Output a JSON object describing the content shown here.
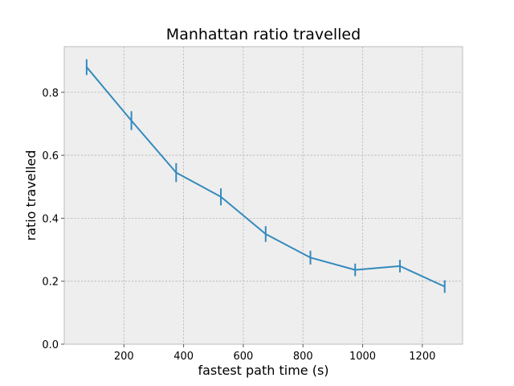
{
  "chart_data": {
    "type": "line",
    "title": "Manhattan ratio travelled",
    "xlabel": "fastest path time (s)",
    "ylabel": "ratio travelled",
    "xlim": [
      0,
      1335
    ],
    "ylim": [
      0.0,
      0.945
    ],
    "xticks": [
      200,
      400,
      600,
      800,
      1000,
      1200
    ],
    "xtick_labels": [
      "200",
      "400",
      "600",
      "800",
      "1000",
      "1200"
    ],
    "yticks": [
      0.0,
      0.2,
      0.4,
      0.6,
      0.8
    ],
    "ytick_labels": [
      "0.0",
      "0.2",
      "0.4",
      "0.6",
      "0.8"
    ],
    "grid": true,
    "series": [
      {
        "x": [
          75,
          225,
          375,
          525,
          675,
          825,
          975,
          1125,
          1275
        ],
        "y": [
          0.88,
          0.71,
          0.545,
          0.468,
          0.35,
          0.275,
          0.236,
          0.248,
          0.183
        ],
        "err": [
          0.025,
          0.03,
          0.03,
          0.027,
          0.025,
          0.022,
          0.02,
          0.02,
          0.02
        ]
      }
    ],
    "colors": {
      "line": "#348abd",
      "plot_bg": "#eeeeee",
      "grid": "#b2b2b2",
      "frame": "#bcbcbc"
    }
  }
}
